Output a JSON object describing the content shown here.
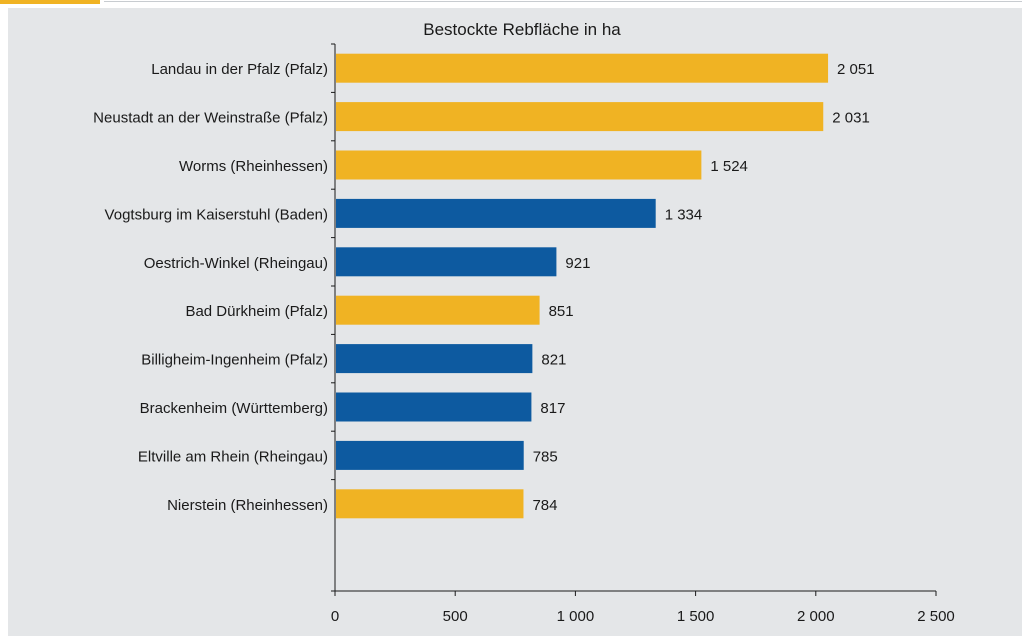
{
  "chart_data": {
    "type": "bar",
    "orientation": "horizontal",
    "title": "Bestockte Rebfläche in ha",
    "xlim": [
      0,
      2500
    ],
    "xticks": [
      0,
      500,
      1000,
      1500,
      2000,
      2500
    ],
    "xtick_labels": [
      "0",
      "500",
      "1 000",
      "1 500",
      "2 000",
      "2 500"
    ],
    "grid": false,
    "categories": [
      "Landau in der Pfalz (Pfalz)",
      "Neustadt an der Weinstraße (Pfalz)",
      "Worms (Rheinhessen)",
      "Vogtsburg im Kaiserstuhl (Baden)",
      "Oestrich-Winkel (Rheingau)",
      "Bad Dürkheim (Pfalz)",
      "Billigheim-Ingenheim (Pfalz)",
      "Brackenheim (Württemberg)",
      "Eltville am Rhein (Rheingau)",
      "Nierstein (Rheinhessen)"
    ],
    "values": [
      2051,
      2031,
      1524,
      1334,
      921,
      851,
      821,
      817,
      785,
      784
    ],
    "value_labels": [
      "2 051",
      "2 031",
      "1 524",
      "1 334",
      "921",
      "851",
      "821",
      "817",
      "785",
      "784"
    ],
    "bar_colors": [
      "#f0b323",
      "#f0b323",
      "#f0b323",
      "#0d5aa0",
      "#0d5aa0",
      "#f0b323",
      "#0d5aa0",
      "#0d5aa0",
      "#0d5aa0",
      "#f0b323"
    ]
  },
  "colors": {
    "background": "#e4e6e8",
    "accent_yellow": "#f0b323",
    "accent_blue": "#0d5aa0",
    "axis": "#1a1a1a"
  }
}
